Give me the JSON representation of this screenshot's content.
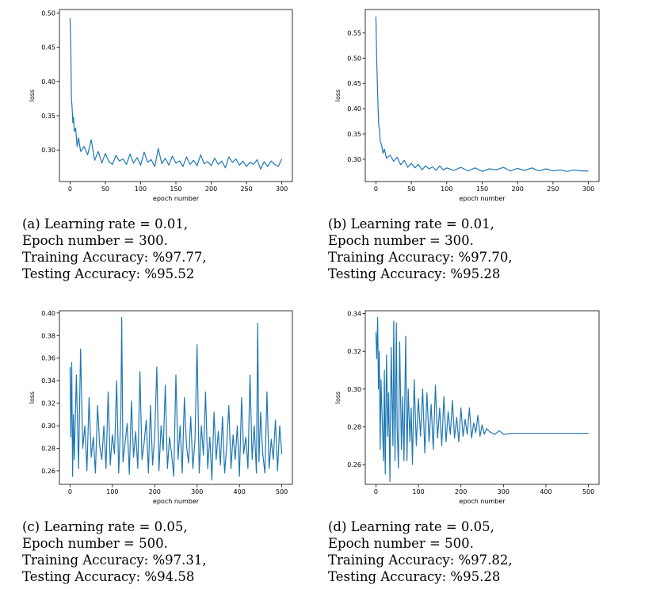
{
  "colors": {
    "line": "#1f77b4",
    "axes": "#000000",
    "background": "#ffffff"
  },
  "chart_data": [
    {
      "type": "line",
      "id": "a",
      "xlabel": "epoch number",
      "ylabel": "loss",
      "xlim": [
        -15,
        315
      ],
      "ylim": [
        0.254,
        0.505
      ],
      "xticks": [
        0,
        50,
        100,
        150,
        200,
        250,
        300
      ],
      "yticks": [
        0.3,
        0.35,
        0.4,
        0.45,
        0.5
      ],
      "ytick_labels": [
        "0.30",
        "0.35",
        "0.40",
        "0.45",
        "0.50"
      ],
      "grid": false,
      "series": [
        {
          "x": [
            0,
            1,
            2,
            3,
            4,
            5,
            6,
            8,
            10,
            12,
            15,
            20,
            25,
            30,
            35,
            40,
            45,
            50,
            55,
            60,
            65,
            70,
            75,
            80,
            85,
            90,
            95,
            100,
            105,
            110,
            115,
            120,
            125,
            130,
            135,
            140,
            145,
            150,
            155,
            160,
            165,
            170,
            175,
            180,
            185,
            190,
            195,
            200,
            205,
            210,
            215,
            220,
            225,
            230,
            235,
            240,
            245,
            250,
            255,
            260,
            265,
            270,
            275,
            280,
            285,
            290,
            295,
            300
          ],
          "y": [
            0.492,
            0.455,
            0.376,
            0.362,
            0.34,
            0.348,
            0.327,
            0.332,
            0.305,
            0.318,
            0.298,
            0.305,
            0.293,
            0.315,
            0.285,
            0.298,
            0.281,
            0.295,
            0.283,
            0.279,
            0.292,
            0.284,
            0.287,
            0.279,
            0.294,
            0.281,
            0.289,
            0.278,
            0.297,
            0.282,
            0.286,
            0.276,
            0.302,
            0.28,
            0.288,
            0.278,
            0.291,
            0.281,
            0.284,
            0.276,
            0.29,
            0.279,
            0.285,
            0.277,
            0.293,
            0.28,
            0.283,
            0.277,
            0.288,
            0.279,
            0.284,
            0.274,
            0.29,
            0.282,
            0.287,
            0.278,
            0.284,
            0.276,
            0.282,
            0.279,
            0.286,
            0.272,
            0.283,
            0.276,
            0.284,
            0.279,
            0.276,
            0.287
          ]
        }
      ]
    },
    {
      "type": "line",
      "id": "b",
      "xlabel": "epoch number",
      "ylabel": "loss",
      "xlim": [
        -15,
        315
      ],
      "ylim": [
        0.256,
        0.596
      ],
      "xticks": [
        0,
        50,
        100,
        150,
        200,
        250,
        300
      ],
      "yticks": [
        0.3,
        0.35,
        0.4,
        0.45,
        0.5,
        0.55
      ],
      "ytick_labels": [
        "0.30",
        "0.35",
        "0.40",
        "0.45",
        "0.50",
        "0.55"
      ],
      "grid": false,
      "series": [
        {
          "x": [
            0,
            1,
            2,
            3,
            4,
            5,
            6,
            8,
            10,
            12,
            15,
            20,
            25,
            30,
            35,
            40,
            45,
            50,
            55,
            60,
            65,
            70,
            75,
            80,
            85,
            90,
            95,
            100,
            110,
            120,
            130,
            140,
            150,
            160,
            170,
            180,
            190,
            200,
            210,
            220,
            230,
            240,
            250,
            260,
            270,
            280,
            290,
            300
          ],
          "y": [
            0.582,
            0.505,
            0.452,
            0.402,
            0.367,
            0.36,
            0.336,
            0.328,
            0.312,
            0.32,
            0.302,
            0.308,
            0.296,
            0.304,
            0.289,
            0.298,
            0.284,
            0.292,
            0.283,
            0.29,
            0.279,
            0.287,
            0.281,
            0.285,
            0.278,
            0.287,
            0.279,
            0.283,
            0.278,
            0.284,
            0.277,
            0.283,
            0.276,
            0.281,
            0.279,
            0.284,
            0.277,
            0.282,
            0.278,
            0.283,
            0.277,
            0.281,
            0.277,
            0.279,
            0.276,
            0.279,
            0.277,
            0.277
          ]
        }
      ]
    },
    {
      "type": "line",
      "id": "c",
      "xlabel": "epoch number",
      "ylabel": "loss",
      "xlim": [
        -25,
        525
      ],
      "ylim": [
        0.248,
        0.402
      ],
      "xticks": [
        0,
        100,
        200,
        300,
        400,
        500
      ],
      "yticks": [
        0.26,
        0.28,
        0.3,
        0.32,
        0.34,
        0.36,
        0.38,
        0.4
      ],
      "ytick_labels": [
        "0.26",
        "0.28",
        "0.30",
        "0.32",
        "0.34",
        "0.36",
        "0.38",
        "0.40"
      ],
      "grid": false,
      "series": [
        {
          "x": [
            0,
            2,
            4,
            6,
            8,
            10,
            15,
            20,
            25,
            30,
            35,
            40,
            45,
            50,
            55,
            60,
            65,
            70,
            75,
            80,
            85,
            90,
            95,
            100,
            105,
            110,
            115,
            120,
            122,
            125,
            130,
            135,
            140,
            145,
            150,
            155,
            160,
            165,
            170,
            175,
            180,
            185,
            190,
            195,
            200,
            205,
            210,
            215,
            220,
            225,
            230,
            235,
            240,
            245,
            250,
            255,
            260,
            265,
            270,
            275,
            280,
            285,
            290,
            295,
            300,
            305,
            310,
            315,
            320,
            325,
            330,
            335,
            340,
            345,
            350,
            355,
            360,
            365,
            370,
            375,
            380,
            385,
            390,
            395,
            400,
            405,
            410,
            415,
            420,
            425,
            430,
            435,
            440,
            443,
            446,
            450,
            455,
            460,
            465,
            470,
            475,
            480,
            485,
            490,
            495,
            500
          ],
          "y": [
            0.352,
            0.29,
            0.356,
            0.255,
            0.31,
            0.27,
            0.345,
            0.262,
            0.368,
            0.28,
            0.3,
            0.26,
            0.325,
            0.272,
            0.29,
            0.258,
            0.318,
            0.282,
            0.27,
            0.3,
            0.262,
            0.33,
            0.265,
            0.292,
            0.275,
            0.34,
            0.258,
            0.31,
            0.396,
            0.268,
            0.285,
            0.302,
            0.257,
            0.322,
            0.272,
            0.295,
            0.262,
            0.348,
            0.27,
            0.285,
            0.305,
            0.258,
            0.318,
            0.265,
            0.292,
            0.352,
            0.26,
            0.3,
            0.278,
            0.336,
            0.262,
            0.29,
            0.274,
            0.255,
            0.345,
            0.27,
            0.3,
            0.258,
            0.325,
            0.282,
            0.267,
            0.308,
            0.262,
            0.288,
            0.372,
            0.258,
            0.3,
            0.274,
            0.33,
            0.262,
            0.29,
            0.252,
            0.312,
            0.27,
            0.295,
            0.265,
            0.308,
            0.258,
            0.282,
            0.318,
            0.262,
            0.292,
            0.27,
            0.3,
            0.255,
            0.325,
            0.275,
            0.29,
            0.262,
            0.345,
            0.27,
            0.3,
            0.258,
            0.391,
            0.268,
            0.312,
            0.275,
            0.258,
            0.33,
            0.262,
            0.288,
            0.27,
            0.305,
            0.26,
            0.3,
            0.275
          ]
        }
      ]
    },
    {
      "type": "line",
      "id": "d",
      "xlabel": "epoch number",
      "ylabel": "loss",
      "xlim": [
        -25,
        525
      ],
      "ylim": [
        0.2495,
        0.3415
      ],
      "xticks": [
        0,
        100,
        200,
        300,
        400,
        500
      ],
      "yticks": [
        0.26,
        0.28,
        0.3,
        0.32,
        0.34
      ],
      "ytick_labels": [
        "0.26",
        "0.28",
        "0.30",
        "0.32",
        "0.34"
      ],
      "grid": false,
      "series": [
        {
          "x": [
            0,
            2,
            4,
            6,
            8,
            10,
            12,
            15,
            18,
            20,
            22,
            25,
            28,
            30,
            33,
            36,
            40,
            42,
            45,
            48,
            50,
            53,
            56,
            60,
            63,
            66,
            70,
            73,
            76,
            80,
            83,
            86,
            90,
            95,
            100,
            105,
            110,
            115,
            120,
            125,
            130,
            135,
            140,
            145,
            150,
            155,
            160,
            165,
            170,
            175,
            180,
            185,
            190,
            195,
            200,
            205,
            210,
            215,
            220,
            225,
            230,
            235,
            240,
            245,
            250,
            255,
            260,
            270,
            280,
            290,
            300,
            320,
            350,
            400,
            450,
            500
          ],
          "y": [
            0.33,
            0.316,
            0.338,
            0.3,
            0.32,
            0.268,
            0.305,
            0.282,
            0.262,
            0.31,
            0.255,
            0.318,
            0.275,
            0.298,
            0.251,
            0.322,
            0.27,
            0.336,
            0.262,
            0.335,
            0.28,
            0.258,
            0.325,
            0.268,
            0.296,
            0.262,
            0.328,
            0.262,
            0.3,
            0.272,
            0.29,
            0.26,
            0.305,
            0.27,
            0.295,
            0.275,
            0.3,
            0.266,
            0.298,
            0.272,
            0.292,
            0.268,
            0.302,
            0.274,
            0.29,
            0.27,
            0.296,
            0.272,
            0.288,
            0.276,
            0.294,
            0.274,
            0.285,
            0.272,
            0.29,
            0.275,
            0.284,
            0.276,
            0.29,
            0.274,
            0.282,
            0.277,
            0.286,
            0.275,
            0.281,
            0.276,
            0.279,
            0.277,
            0.276,
            0.278,
            0.276,
            0.2765,
            0.2765,
            0.2765,
            0.2765,
            0.2765
          ]
        }
      ]
    }
  ],
  "captions": [
    {
      "label": "(a)",
      "line1": "(a) Learning rate = 0.01,",
      "line2": "Epoch number = 300.",
      "line3": "Training Accuracy: %97.77,",
      "line4": "Testing Accuracy: %95.52"
    },
    {
      "label": "(b)",
      "line1": "(b) Learning rate = 0.01,",
      "line2": "Epoch number = 300.",
      "line3": "Training Accuracy: %97.70,",
      "line4": "Testing Accuracy: %95.28"
    },
    {
      "label": "(c)",
      "line1": "(c) Learning rate = 0.05,",
      "line2": "Epoch number = 500.",
      "line3": "Training Accuracy: %97.31,",
      "line4": "Testing Accuracy: %94.58"
    },
    {
      "label": "(d)",
      "line1": "(d) Learning rate = 0.05,",
      "line2": "Epoch number = 500.",
      "line3": "Training Accuracy: %97.82,",
      "line4": "Testing Accuracy: %95.28"
    }
  ]
}
